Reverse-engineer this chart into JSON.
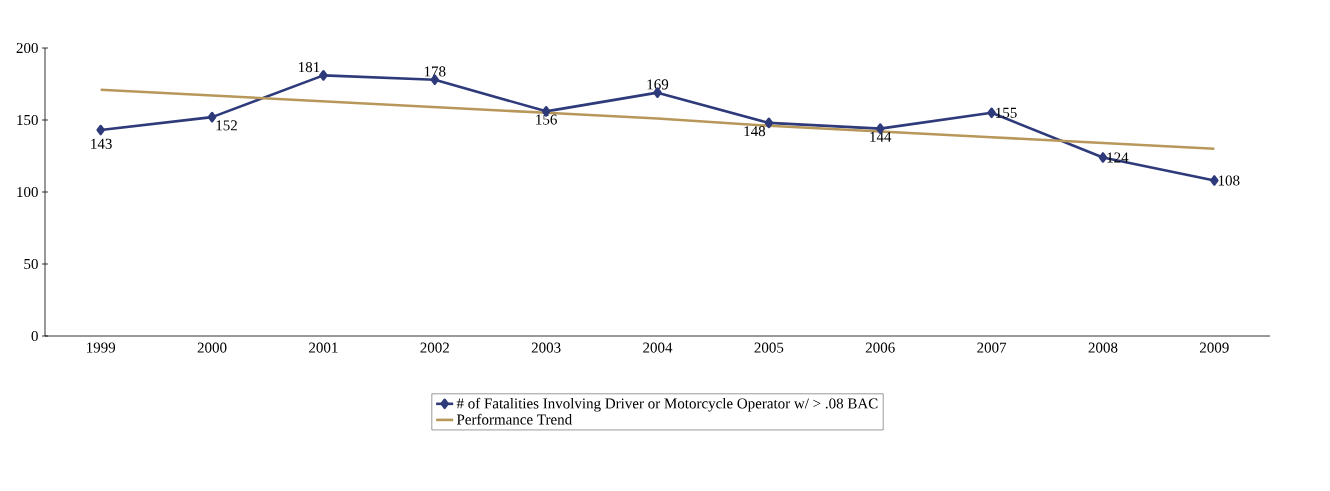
{
  "chart_data": {
    "type": "line",
    "categories": [
      "1999",
      "2000",
      "2001",
      "2002",
      "2003",
      "2004",
      "2005",
      "2006",
      "2007",
      "2008",
      "2009"
    ],
    "series": [
      {
        "name": "# of Fatalities Involving Driver or Motorcycle Operator w/ > .08 BAC",
        "color": "#2e3a7a",
        "values": [
          143,
          152,
          181,
          178,
          156,
          169,
          148,
          144,
          155,
          124,
          108
        ],
        "marker": "diamond",
        "data_labels": true
      },
      {
        "name": "Performance Trend",
        "color": "#b8975a",
        "values": [
          171,
          167,
          163,
          159,
          155,
          151,
          146,
          142,
          138,
          134,
          130
        ],
        "marker": "none"
      }
    ],
    "ylim": [
      0,
      200
    ],
    "yticks": [
      0,
      50,
      100,
      150,
      200
    ],
    "grid": false,
    "legend": "bottom",
    "line_style": "solid"
  }
}
